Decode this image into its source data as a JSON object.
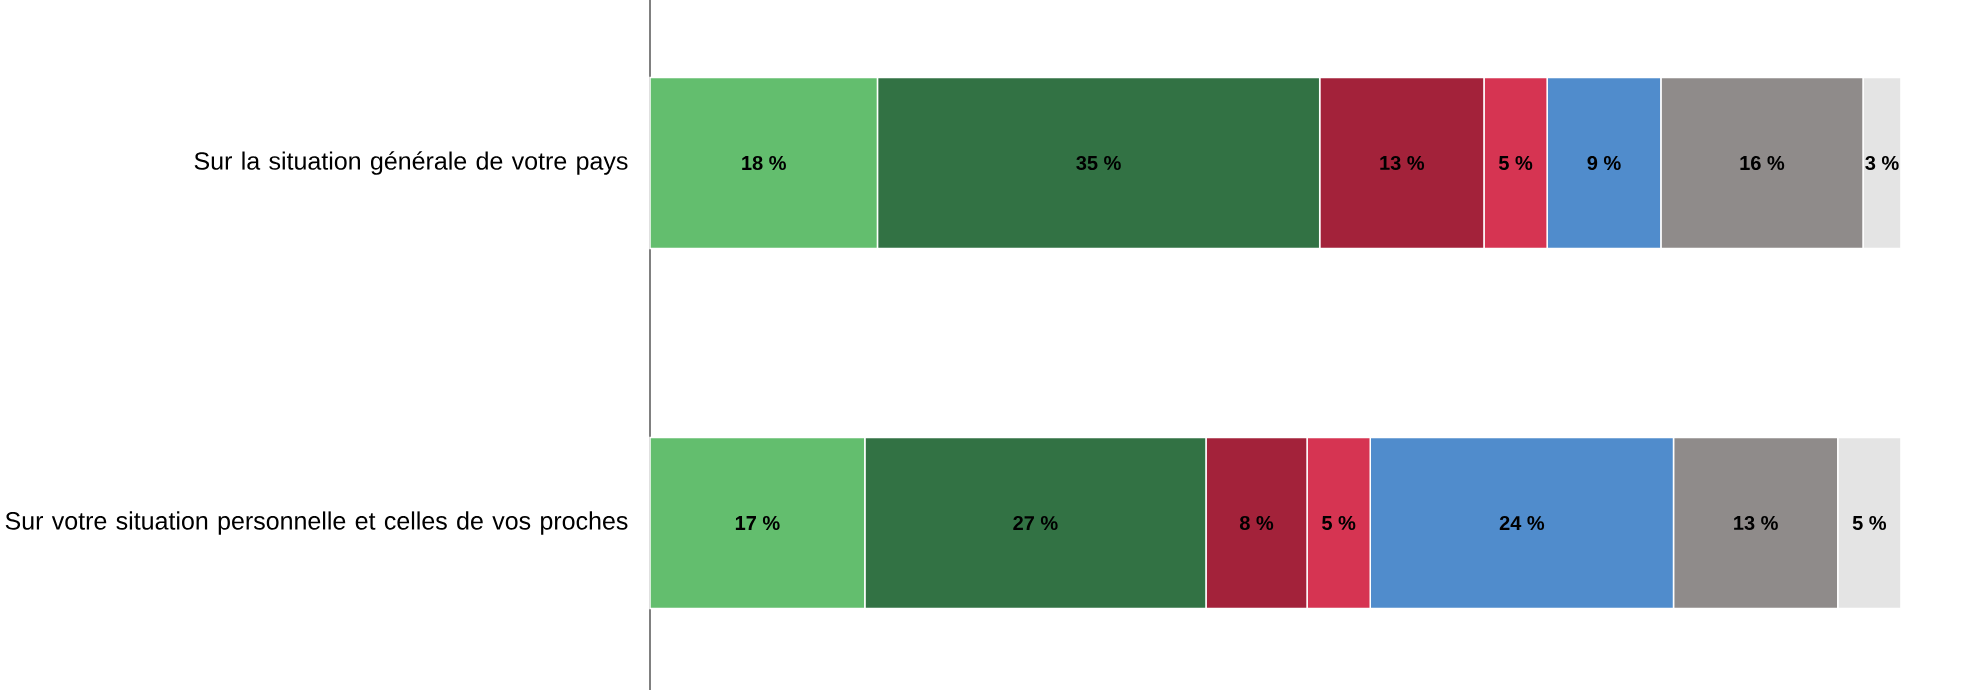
{
  "chart_data": {
    "type": "bar",
    "orientation": "horizontal",
    "stacked": true,
    "tick_labels": "y",
    "categories": [
      "Sur la situation générale de votre pays",
      "Sur votre situation personnelle et celles de vos proches"
    ],
    "series": [
      {
        "color": "#63be6e",
        "values": [
          18,
          17
        ],
        "value_labels": [
          "18 %",
          "17 %"
        ]
      },
      {
        "color": "#327244",
        "values": [
          35,
          27
        ],
        "value_labels": [
          "35 %",
          "27 %"
        ]
      },
      {
        "color": "#a3223a",
        "values": [
          13,
          8
        ],
        "value_labels": [
          "13 %",
          "8 %"
        ]
      },
      {
        "color": "#d63452",
        "values": [
          5,
          5
        ],
        "value_labels": [
          "5 %",
          "5 %"
        ]
      },
      {
        "color": "#508ccc",
        "values": [
          9,
          24
        ],
        "value_labels": [
          "9 %",
          "24 %"
        ]
      },
      {
        "color": "#8f8b8a",
        "values": [
          16,
          13
        ],
        "value_labels": [
          "16 %",
          "13 %"
        ]
      },
      {
        "color": "#e4e4e4",
        "values": [
          3,
          5
        ],
        "value_labels": [
          "3 %",
          "5 %"
        ]
      }
    ]
  }
}
